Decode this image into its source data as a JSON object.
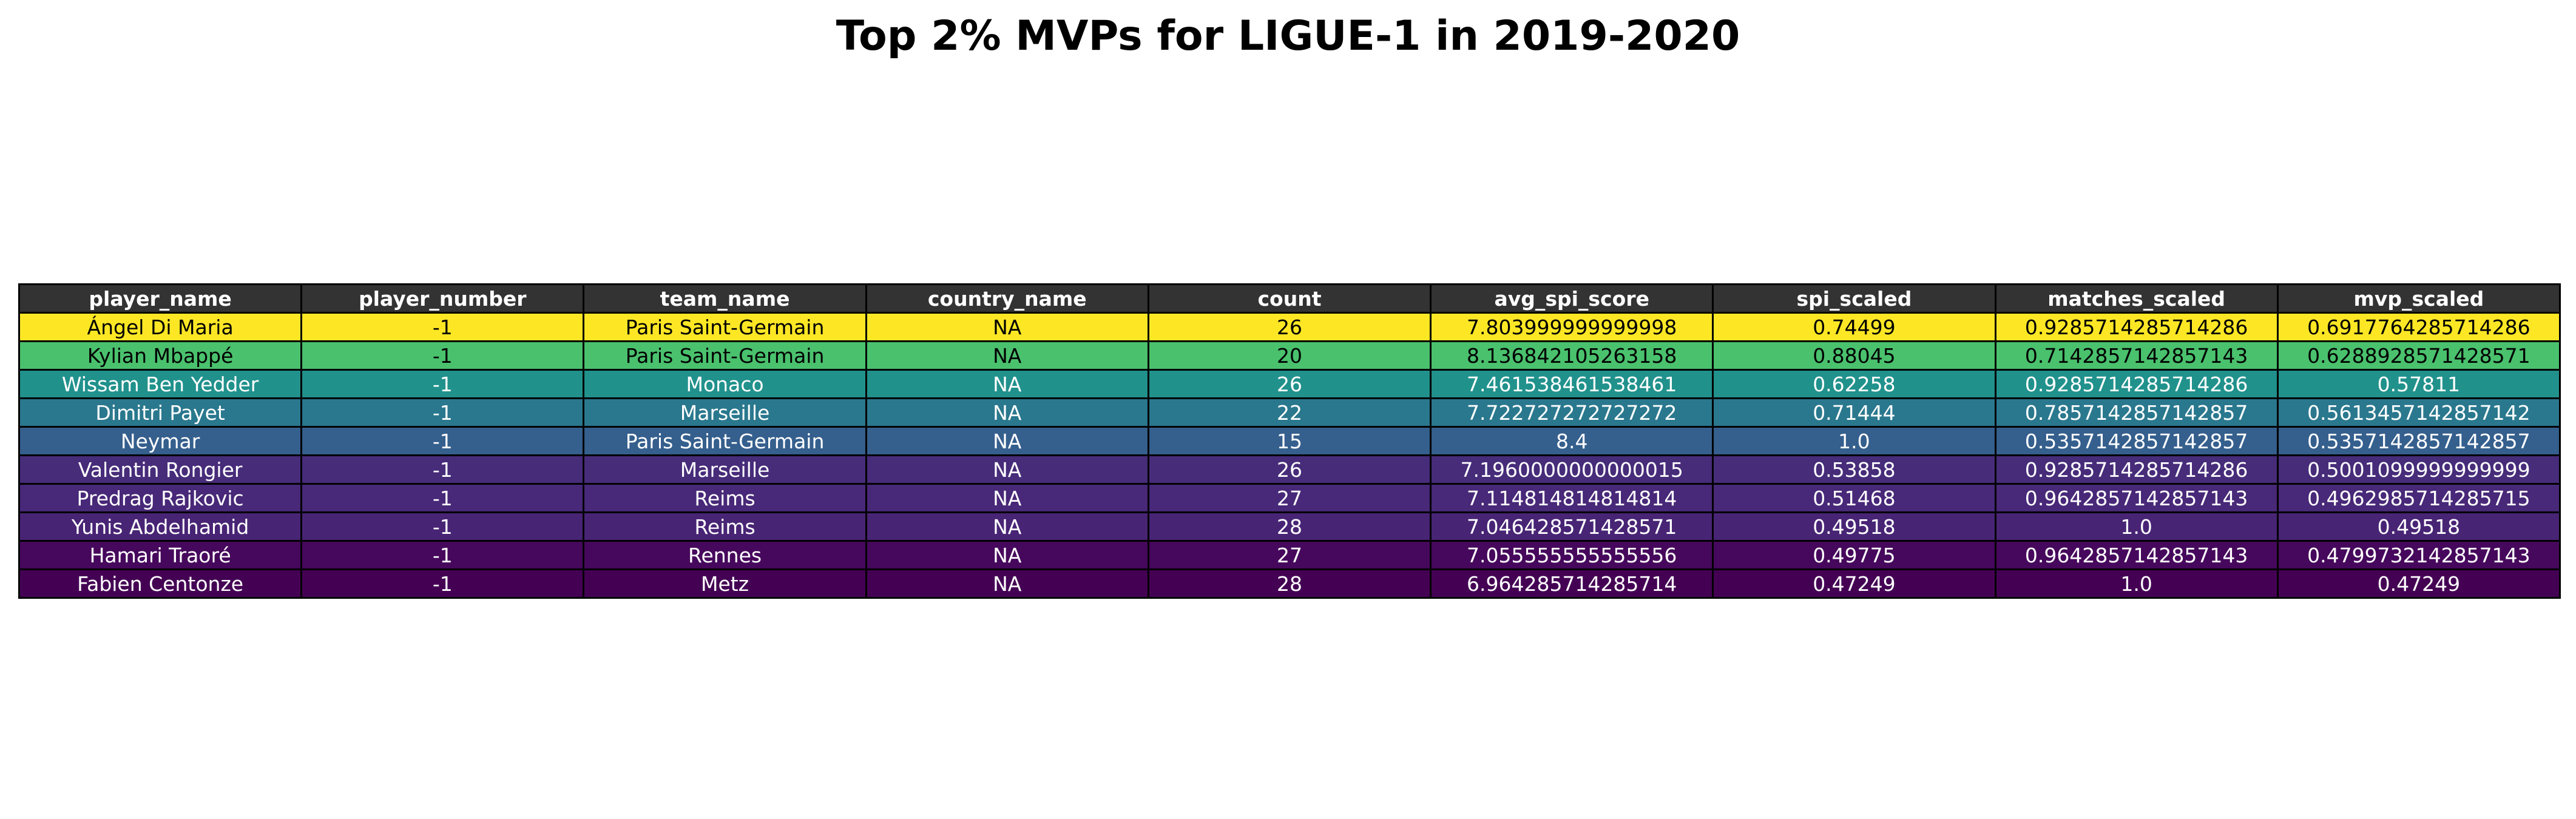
{
  "chart_data": {
    "type": "table",
    "title": "Top 2% MVPs for LIGUE-1 in 2019-2020",
    "columns": [
      "player_name",
      "player_number",
      "team_name",
      "country_name",
      "count",
      "avg_spi_score",
      "spi_scaled",
      "matches_scaled",
      "mvp_scaled"
    ],
    "rows": [
      [
        "Ángel Di Maria",
        "-1",
        "Paris Saint-Germain",
        "NA",
        "26",
        "7.803999999999998",
        "0.74499",
        "0.9285714285714286",
        "0.6917764285714286"
      ],
      [
        "Kylian Mbappé",
        "-1",
        "Paris Saint-Germain",
        "NA",
        "20",
        "8.136842105263158",
        "0.88045",
        "0.7142857142857143",
        "0.6288928571428571"
      ],
      [
        "Wissam Ben Yedder",
        "-1",
        "Monaco",
        "NA",
        "26",
        "7.461538461538461",
        "0.62258",
        "0.9285714285714286",
        "0.57811"
      ],
      [
        "Dimitri Payet",
        "-1",
        "Marseille",
        "NA",
        "22",
        "7.722727272727272",
        "0.71444",
        "0.7857142857142857",
        "0.5613457142857142"
      ],
      [
        "Neymar",
        "-1",
        "Paris Saint-Germain",
        "NA",
        "15",
        "8.4",
        "1.0",
        "0.5357142857142857",
        "0.5357142857142857"
      ],
      [
        "Valentin Rongier",
        "-1",
        "Marseille",
        "NA",
        "26",
        "7.1960000000000015",
        "0.53858",
        "0.9285714285714286",
        "0.5001099999999999"
      ],
      [
        "Predrag Rajkovic",
        "-1",
        "Reims",
        "NA",
        "27",
        "7.114814814814814",
        "0.51468",
        "0.9642857142857143",
        "0.4962985714285715"
      ],
      [
        "Yunis Abdelhamid",
        "-1",
        "Reims",
        "NA",
        "28",
        "7.046428571428571",
        "0.49518",
        "1.0",
        "0.49518"
      ],
      [
        "Hamari Traoré",
        "-1",
        "Rennes",
        "NA",
        "27",
        "7.055555555555556",
        "0.49775",
        "0.9642857142857143",
        "0.4799732142857143"
      ],
      [
        "Fabien Centonze",
        "-1",
        "Metz",
        "NA",
        "28",
        "6.964285714285714",
        "0.47249",
        "1.0",
        "0.47249"
      ]
    ],
    "row_colors": [
      "#fde725",
      "#4ac16d",
      "#21918c",
      "#2a788e",
      "#355f8d",
      "#472c7a",
      "#482878",
      "#482475",
      "#46085c",
      "#440154"
    ],
    "row_text_colors": [
      "#000000",
      "#000000",
      "#ffffff",
      "#ffffff",
      "#ffffff",
      "#ffffff",
      "#ffffff",
      "#ffffff",
      "#ffffff",
      "#ffffff"
    ],
    "header_color": "#333333",
    "header_text_color": "#ffffff",
    "colormap": "viridis"
  }
}
